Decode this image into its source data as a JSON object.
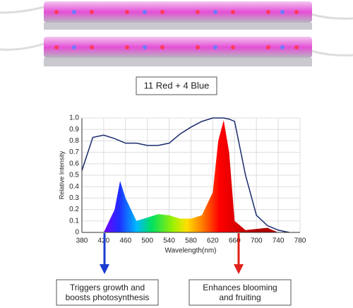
{
  "badge": "11 Red + 4 Blue",
  "chart_data": {
    "type": "line",
    "ylabel": "Relative Intensity",
    "xlabel": "Wavelength(nm)",
    "x": [
      380,
      400,
      420,
      440,
      450,
      460,
      480,
      500,
      520,
      540,
      560,
      580,
      600,
      620,
      630,
      640,
      650,
      660,
      680,
      700,
      720,
      740,
      760
    ],
    "series": [
      {
        "color": "#1a2a6c",
        "values": [
          0.54,
          0.83,
          0.85,
          0.82,
          0.8,
          0.78,
          0.78,
          0.76,
          0.76,
          0.78,
          0.86,
          0.92,
          0.97,
          1.0,
          1.0,
          1.0,
          0.99,
          0.97,
          0.5,
          0.15,
          0.06,
          0.02,
          0
        ]
      },
      {
        "color": "spectrum",
        "values": [
          null,
          null,
          0,
          0.2,
          0.45,
          0.3,
          0.1,
          0.13,
          0.16,
          0.15,
          0.12,
          0.12,
          0.15,
          0.35,
          0.8,
          0.98,
          0.7,
          0.1,
          0.02,
          0.03,
          0.04,
          0,
          null
        ]
      }
    ],
    "xlim": [
      380,
      780
    ],
    "xticks": [
      380,
      420,
      460,
      500,
      540,
      580,
      620,
      660,
      700,
      740,
      780
    ],
    "ylim": [
      0,
      1
    ],
    "yticks": [
      0,
      0.1,
      0.2,
      0.3,
      0.4,
      0.5,
      0.6,
      0.7,
      0.8,
      0.9,
      {
        "value": 1,
        "label": "1.0"
      }
    ],
    "grid": true
  },
  "annotations": [
    {
      "lines": [
        "Triggers growth and",
        "boosts photosynthesis"
      ],
      "color": "#1a3ccf"
    },
    {
      "lines": [
        "Enhances blooming",
        "and fruiting"
      ],
      "color": "#e0201a"
    }
  ]
}
